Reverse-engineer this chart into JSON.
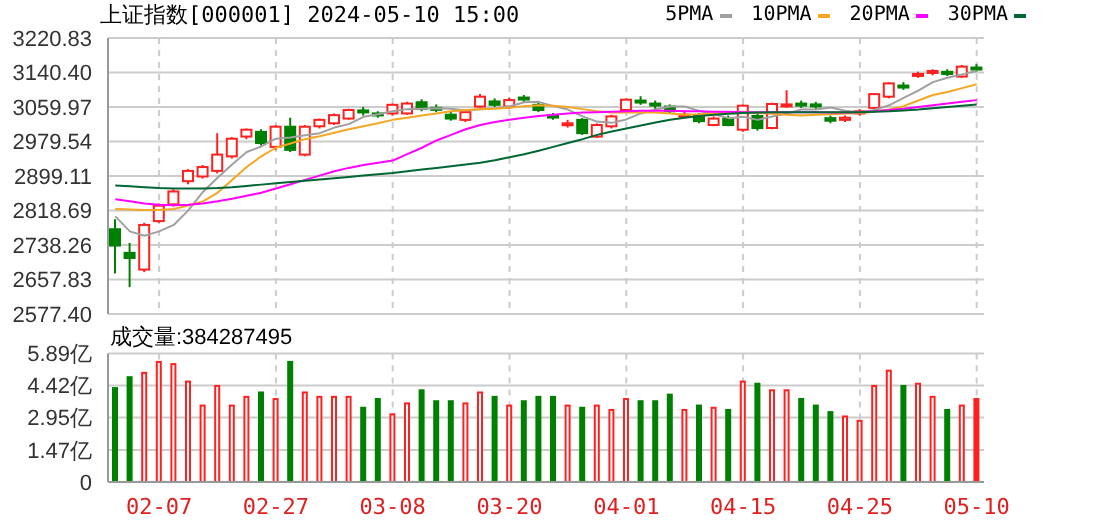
{
  "chart_data": [
    {
      "type": "candlestick",
      "title": "上证指数[000001] 2024-05-10 15:00",
      "categories": [
        null,
        null,
        null,
        null,
        null,
        null,
        null,
        null,
        null,
        null,
        null,
        null,
        null,
        null,
        null,
        null,
        null,
        null,
        null,
        null,
        null,
        null,
        null,
        null,
        null,
        null,
        null,
        null,
        null,
        null,
        null,
        null,
        null,
        null,
        null,
        null,
        null,
        null,
        null,
        null,
        null,
        null,
        null,
        null,
        null,
        null,
        null,
        null,
        null,
        null,
        null,
        null,
        null,
        null,
        null,
        null,
        null,
        null,
        null,
        null
      ],
      "ohlc": [
        [
          2775,
          2798,
          2672,
          2737
        ],
        [
          2720,
          2743,
          2640,
          2708
        ],
        [
          2681,
          2790,
          2675,
          2785
        ],
        [
          2794,
          2835,
          2790,
          2830
        ],
        [
          2833,
          2868,
          2828,
          2863
        ],
        [
          2887,
          2915,
          2880,
          2911
        ],
        [
          2898,
          2925,
          2893,
          2920
        ],
        [
          2911,
          2999,
          2905,
          2949
        ],
        [
          2945,
          2990,
          2940,
          2986
        ],
        [
          2991,
          3010,
          2985,
          3007
        ],
        [
          3002,
          3008,
          2970,
          2976
        ],
        [
          2967,
          3018,
          2960,
          3014
        ],
        [
          3014,
          3035,
          2955,
          2960
        ],
        [
          2949,
          3018,
          2945,
          3014
        ],
        [
          3015,
          3033,
          3010,
          3030
        ],
        [
          3022,
          3045,
          3018,
          3041
        ],
        [
          3033,
          3056,
          3030,
          3053
        ],
        [
          3052,
          3060,
          3040,
          3049
        ],
        [
          3045,
          3050,
          3035,
          3041
        ],
        [
          3045,
          3068,
          3040,
          3065
        ],
        [
          3045,
          3072,
          3042,
          3068
        ],
        [
          3071,
          3078,
          3050,
          3056
        ],
        [
          3058,
          3066,
          3048,
          3056
        ],
        [
          3042,
          3050,
          3028,
          3033
        ],
        [
          3030,
          3052,
          3025,
          3048
        ],
        [
          3061,
          3090,
          3058,
          3084
        ],
        [
          3073,
          3080,
          3060,
          3065
        ],
        [
          3061,
          3082,
          3055,
          3076
        ],
        [
          3082,
          3088,
          3070,
          3080
        ],
        [
          3065,
          3070,
          3048,
          3053
        ],
        [
          3040,
          3046,
          3030,
          3038
        ],
        [
          3020,
          3030,
          3012,
          3022
        ],
        [
          3030,
          3034,
          2995,
          2999
        ],
        [
          2991,
          3022,
          2988,
          3018
        ],
        [
          3015,
          3042,
          3010,
          3038
        ],
        [
          3053,
          3080,
          3048,
          3077
        ],
        [
          3075,
          3085,
          3065,
          3073
        ],
        [
          3068,
          3075,
          3055,
          3065
        ],
        [
          3061,
          3066,
          3045,
          3050
        ],
        [
          3040,
          3052,
          3035,
          3042
        ],
        [
          3041,
          3046,
          3022,
          3027
        ],
        [
          3018,
          3038,
          3015,
          3033
        ],
        [
          3033,
          3040,
          3015,
          3018
        ],
        [
          3007,
          3066,
          3002,
          3063
        ],
        [
          3039,
          3045,
          3005,
          3011
        ],
        [
          3011,
          3070,
          3008,
          3067
        ],
        [
          3064,
          3099,
          3058,
          3066
        ],
        [
          3068,
          3075,
          3058,
          3064
        ],
        [
          3066,
          3072,
          3055,
          3062
        ],
        [
          3034,
          3040,
          3022,
          3028
        ],
        [
          3030,
          3040,
          3025,
          3035
        ],
        [
          3045,
          3055,
          3040,
          3050
        ],
        [
          3058,
          3092,
          3055,
          3090
        ],
        [
          3084,
          3118,
          3080,
          3115
        ],
        [
          3110,
          3118,
          3100,
          3106
        ],
        [
          3134,
          3142,
          3128,
          3137
        ],
        [
          3140,
          3148,
          3134,
          3144
        ],
        [
          3142,
          3148,
          3132,
          3137
        ],
        [
          3131,
          3158,
          3128,
          3154
        ],
        [
          3152,
          3160,
          3142,
          3150
        ]
      ],
      "colors": [
        "#008000",
        "#008000",
        "#ff2020",
        "#ff2020",
        "#ff2020",
        "#ff2020",
        "#ff2020",
        "#ff2020",
        "#ff2020",
        "#ff2020",
        "#008000",
        "#ff2020",
        "#008000",
        "#ff2020",
        "#ff2020",
        "#ff2020",
        "#ff2020",
        "#008000",
        "#008000",
        "#ff2020",
        "#ff2020",
        "#008000",
        "#008000",
        "#008000",
        "#ff2020",
        "#ff2020",
        "#008000",
        "#ff2020",
        "#008000",
        "#008000",
        "#008000",
        "#ff2020",
        "#008000",
        "#ff2020",
        "#ff2020",
        "#ff2020",
        "#008000",
        "#008000",
        "#008000",
        "#ff2020",
        "#008000",
        "#ff2020",
        "#008000",
        "#ff2020",
        "#008000",
        "#ff2020",
        "#ff2020",
        "#008000",
        "#008000",
        "#008000",
        "#ff2020",
        "#ff2020",
        "#ff2020",
        "#ff2020",
        "#008000",
        "#ff2020",
        "#ff2020",
        "#008000",
        "#ff2020",
        "#008000"
      ],
      "series": [
        {
          "type": "line",
          "name": "5PMA",
          "color": "#a0a0a0",
          "values": [
            2805,
            2770,
            2760,
            2770,
            2785,
            2819,
            2862,
            2895,
            2926,
            2955,
            2968,
            2986,
            2989,
            2994,
            2999,
            3012,
            3020,
            3037,
            3043,
            3050,
            3055,
            3056,
            3057,
            3056,
            3052,
            3055,
            3057,
            3061,
            3071,
            3072,
            3062,
            3054,
            3038,
            3026,
            3023,
            3031,
            3045,
            3054,
            3061,
            3061,
            3051,
            3043,
            3034,
            3037,
            3030,
            3038,
            3045,
            3054,
            3054,
            3059,
            3051,
            3048,
            3053,
            3064,
            3081,
            3098,
            3118,
            3128,
            3136,
            3144
          ]
        },
        {
          "type": "line",
          "name": "10PMA",
          "color": "#f5a623",
          "values": [
            2822,
            2821,
            2820,
            2820,
            2822,
            2830,
            2840,
            2860,
            2890,
            2920,
            2945,
            2965,
            2975,
            2985,
            2992,
            3000,
            3008,
            3015,
            3022,
            3030,
            3035,
            3040,
            3045,
            3050,
            3053,
            3055,
            3056,
            3058,
            3062,
            3064,
            3063,
            3060,
            3055,
            3050,
            3047,
            3047,
            3048,
            3047,
            3045,
            3042,
            3043,
            3045,
            3047,
            3049,
            3046,
            3044,
            3042,
            3040,
            3042,
            3043,
            3045,
            3046,
            3049,
            3054,
            3062,
            3075,
            3088,
            3095,
            3104,
            3113
          ]
        },
        {
          "type": "line",
          "name": "20PMA",
          "color": "#ff00ff",
          "values": [
            2845,
            2840,
            2835,
            2832,
            2831,
            2832,
            2835,
            2840,
            2846,
            2853,
            2860,
            2870,
            2880,
            2890,
            2900,
            2910,
            2918,
            2925,
            2930,
            2935,
            2950,
            2965,
            2982,
            2995,
            3008,
            3018,
            3025,
            3030,
            3035,
            3039,
            3042,
            3045,
            3047,
            3048,
            3049,
            3050,
            3051,
            3051,
            3051,
            3050,
            3050,
            3049,
            3049,
            3048,
            3048,
            3048,
            3048,
            3048,
            3048,
            3047,
            3047,
            3048,
            3050,
            3053,
            3056,
            3060,
            3064,
            3068,
            3072,
            3076
          ]
        },
        {
          "type": "line",
          "name": "30PMA",
          "color": "#006633",
          "values": [
            2877,
            2875,
            2873,
            2871,
            2870,
            2870,
            2870,
            2871,
            2873,
            2876,
            2879,
            2882,
            2885,
            2888,
            2891,
            2894,
            2897,
            2900,
            2903,
            2906,
            2910,
            2914,
            2918,
            2922,
            2926,
            2930,
            2936,
            2943,
            2950,
            2958,
            2967,
            2976,
            2985,
            2995,
            3003,
            3010,
            3017,
            3024,
            3030,
            3035,
            3039,
            3042,
            3044,
            3046,
            3047,
            3048,
            3048,
            3048,
            3048,
            3048,
            3048,
            3048,
            3049,
            3050,
            3052,
            3054,
            3057,
            3060,
            3063,
            3066
          ]
        }
      ],
      "ylim": [
        2577.4,
        3220.83
      ],
      "yticks": [
        {
          "value": 2577.4,
          "label": "2577.40"
        },
        {
          "value": 2657.83,
          "label": "2657.83"
        },
        {
          "value": 2738.26,
          "label": "2738.26"
        },
        {
          "value": 2818.69,
          "label": "2818.69"
        },
        {
          "value": 2899.11,
          "label": "2899.11"
        },
        {
          "value": 2979.54,
          "label": "2979.54"
        },
        {
          "value": 3059.97,
          "label": "3059.97"
        },
        {
          "value": 3140.4,
          "label": "3140.40"
        },
        {
          "value": 3220.83,
          "label": "3220.83"
        }
      ],
      "grid": true,
      "legend": "top right",
      "tick_labels": "y"
    },
    {
      "type": "bar",
      "categories": [
        null,
        null,
        null,
        "02-07",
        null,
        null,
        null,
        null,
        null,
        null,
        null,
        "02-27",
        null,
        null,
        null,
        null,
        null,
        null,
        null,
        "03-08",
        null,
        null,
        null,
        null,
        null,
        null,
        null,
        "03-20",
        null,
        null,
        null,
        null,
        null,
        null,
        null,
        "04-01",
        null,
        null,
        null,
        null,
        null,
        null,
        null,
        "04-15",
        null,
        null,
        null,
        null,
        null,
        null,
        null,
        "04-25",
        null,
        null,
        null,
        null,
        null,
        null,
        null,
        "05-10"
      ],
      "values": [
        4.3,
        4.8,
        5.0,
        5.5,
        5.4,
        4.6,
        3.5,
        4.4,
        3.5,
        3.9,
        4.1,
        3.8,
        5.5,
        4.1,
        3.9,
        3.9,
        3.9,
        3.4,
        3.8,
        3.1,
        3.6,
        4.2,
        3.7,
        3.7,
        3.6,
        4.1,
        3.9,
        3.5,
        3.7,
        3.9,
        3.9,
        3.5,
        3.4,
        3.5,
        3.3,
        3.8,
        3.7,
        3.7,
        4.0,
        3.3,
        3.5,
        3.4,
        3.3,
        4.6,
        4.5,
        4.2,
        4.2,
        3.8,
        3.5,
        3.2,
        3.0,
        2.8,
        4.4,
        5.1,
        4.4,
        4.5,
        3.9,
        3.3,
        3.5,
        3.8
      ],
      "colors": [
        "#008000",
        "#008000",
        "#ff2020",
        "#ff2020",
        "#ff2020",
        "#ff2020",
        "#ff2020",
        "#ff2020",
        "#ff2020",
        "#ff2020",
        "#008000",
        "#ff2020",
        "#008000",
        "#ff2020",
        "#ff2020",
        "#ff2020",
        "#ff2020",
        "#008000",
        "#008000",
        "#ff2020",
        "#ff2020",
        "#008000",
        "#008000",
        "#008000",
        "#ff2020",
        "#ff2020",
        "#008000",
        "#ff2020",
        "#008000",
        "#008000",
        "#008000",
        "#ff2020",
        "#008000",
        "#ff2020",
        "#ff2020",
        "#ff2020",
        "#008000",
        "#008000",
        "#008000",
        "#ff2020",
        "#008000",
        "#ff2020",
        "#008000",
        "#ff2020",
        "#008000",
        "#ff2020",
        "#ff2020",
        "#008000",
        "#008000",
        "#008000",
        "#ff2020",
        "#ff2020",
        "#ff2020",
        "#ff2020",
        "#008000",
        "#ff2020",
        "#ff2020",
        "#008000",
        "#ff2020",
        "#ff2020"
      ],
      "ylim": [
        0,
        5.89
      ],
      "yticks": [
        0,
        {
          "value": 1.47,
          "label": "1.47亿"
        },
        {
          "value": 2.95,
          "label": "2.95亿"
        },
        {
          "value": 4.42,
          "label": "4.42亿"
        },
        {
          "value": 5.89,
          "label": "5.89亿"
        }
      ],
      "grid": true,
      "annotations": [
        "成交量:384287495"
      ]
    }
  ]
}
